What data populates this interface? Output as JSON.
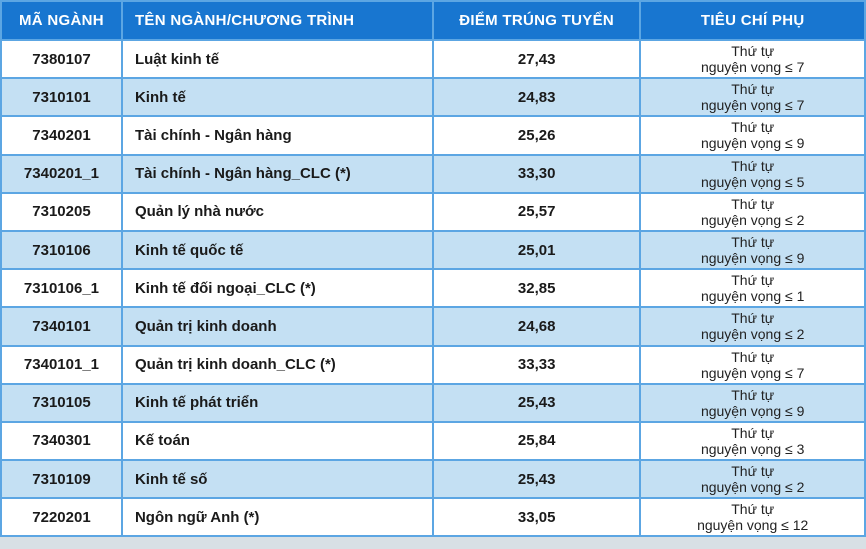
{
  "table": {
    "header_bg": "#1876d0",
    "header_fg": "#ffffff",
    "border_color": "#5ca6e3",
    "alt_row_bg": "#c4e0f3",
    "row_bg": "#ffffff",
    "font_family": "Arial",
    "header_fontsize": 15,
    "cell_fontsize": 15,
    "criteria_fontsize": 14,
    "columns": [
      {
        "key": "code",
        "label": "MÃ NGÀNH",
        "align": "center",
        "width": "14%"
      },
      {
        "key": "name",
        "label": "TÊN NGÀNH/CHƯƠNG TRÌNH",
        "align": "left",
        "width": "36%"
      },
      {
        "key": "score",
        "label": "ĐIỂM TRÚNG TUYỂN",
        "align": "center",
        "width": "24%"
      },
      {
        "key": "criteria",
        "label": "TIÊU CHÍ PHỤ",
        "align": "center",
        "width": "26%"
      }
    ],
    "criteria_line1": "Thứ tự",
    "rows": [
      {
        "code": "7380107",
        "name": "Luật kinh tế",
        "score": "27,43",
        "criteria_line2": "nguyện vọng ≤ 7",
        "alt": false
      },
      {
        "code": "7310101",
        "name": "Kinh tế",
        "score": "24,83",
        "criteria_line2": "nguyện vọng ≤ 7",
        "alt": true
      },
      {
        "code": "7340201",
        "name": "Tài chính - Ngân hàng",
        "score": "25,26",
        "criteria_line2": "nguyện vọng ≤ 9",
        "alt": false
      },
      {
        "code": "7340201_1",
        "name": "Tài chính - Ngân hàng_CLC (*)",
        "score": "33,30",
        "criteria_line2": "nguyện vọng ≤ 5",
        "alt": true
      },
      {
        "code": "7310205",
        "name": "Quản lý nhà nước",
        "score": "25,57",
        "criteria_line2": "nguyện vọng ≤ 2",
        "alt": false
      },
      {
        "code": "7310106",
        "name": "Kinh tế quốc tế",
        "score": "25,01",
        "criteria_line2": "nguyện vọng ≤ 9",
        "alt": true
      },
      {
        "code": "7310106_1",
        "name": "Kinh tế đối ngoại_CLC (*)",
        "score": "32,85",
        "criteria_line2": "nguyện vọng ≤ 1",
        "alt": false
      },
      {
        "code": "7340101",
        "name": "Quản trị kinh doanh",
        "score": "24,68",
        "criteria_line2": "nguyện vọng ≤ 2",
        "alt": true
      },
      {
        "code": "7340101_1",
        "name": "Quản trị kinh doanh_CLC (*)",
        "score": "33,33",
        "criteria_line2": "nguyện vọng ≤ 7",
        "alt": false
      },
      {
        "code": "7310105",
        "name": "Kinh tế phát triển",
        "score": "25,43",
        "criteria_line2": "nguyện vọng ≤ 9",
        "alt": true
      },
      {
        "code": "7340301",
        "name": "Kế toán",
        "score": "25,84",
        "criteria_line2": "nguyện vọng ≤ 3",
        "alt": false
      },
      {
        "code": "7310109",
        "name": "Kinh tế số",
        "score": "25,43",
        "criteria_line2": "nguyện vọng ≤ 2",
        "alt": true
      },
      {
        "code": "7220201",
        "name": "Ngôn ngữ Anh (*)",
        "score": "33,05",
        "criteria_line2": "nguyện vọng ≤ 12",
        "alt": false
      }
    ]
  }
}
